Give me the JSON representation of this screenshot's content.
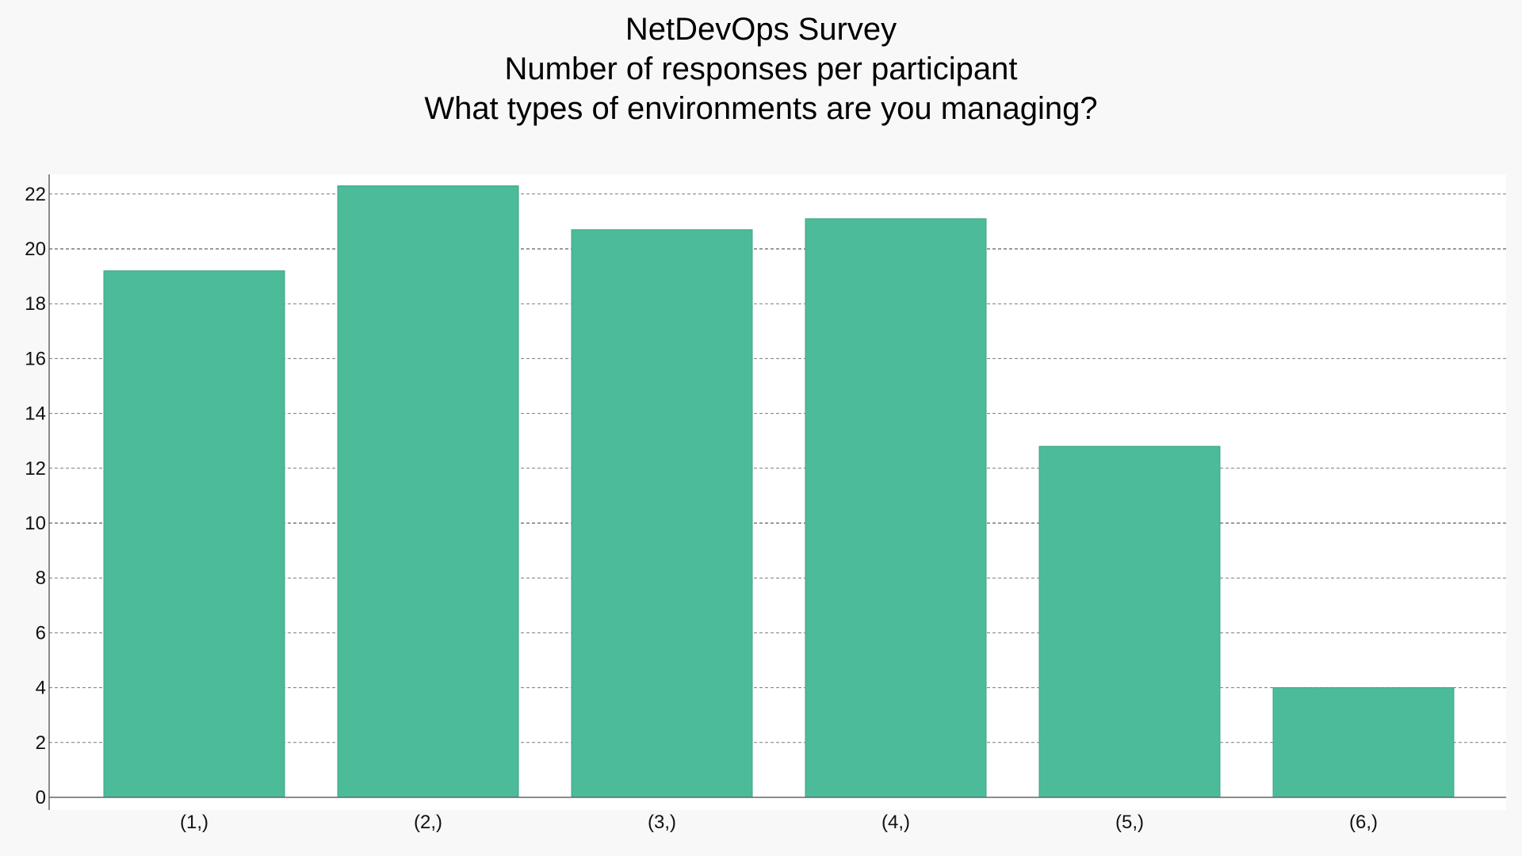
{
  "title_lines": [
    "NetDevOps Survey",
    "Number of responses per participant",
    "What types of environments are you managing?"
  ],
  "colors": {
    "page_background": "#f8f8f8",
    "plot_background": "#ffffff",
    "bar_fill": "#4cbb99",
    "bar_stroke": "#3da584",
    "grid": "#7a7a7a",
    "axis": "#666666"
  },
  "chart_data": {
    "type": "bar",
    "title": "NetDevOps Survey\nNumber of responses per participant\nWhat types of environments are you managing?",
    "categories": [
      "(1,)",
      "(2,)",
      "(3,)",
      "(4,)",
      "(5,)",
      "(6,)"
    ],
    "values": [
      19.2,
      22.3,
      20.7,
      21.1,
      12.8,
      4
    ],
    "xlabel": "",
    "ylabel": "",
    "ylim": [
      0,
      22.7
    ],
    "yticks": [
      0,
      2,
      4,
      6,
      8,
      10,
      12,
      14,
      16,
      18,
      20,
      22
    ],
    "grid": true,
    "legend": "none"
  }
}
